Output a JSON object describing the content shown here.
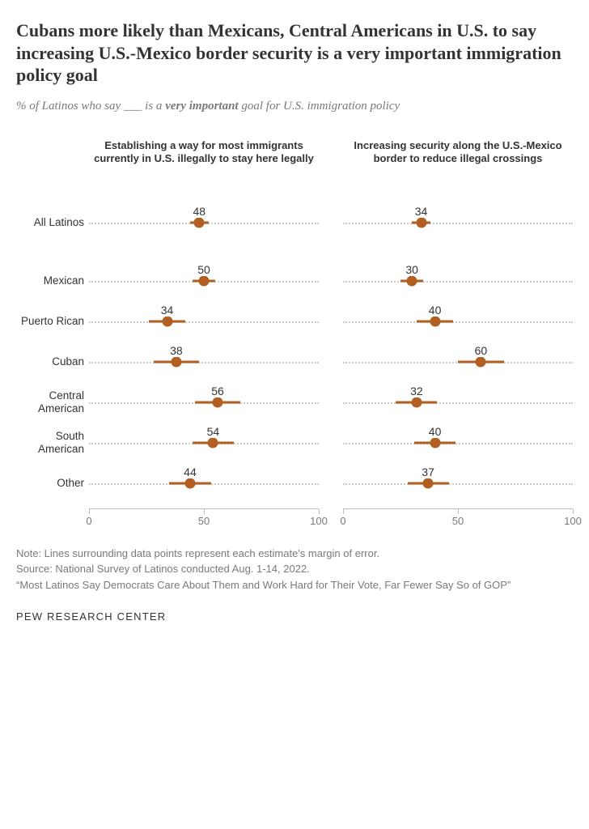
{
  "title": "Cubans more likely than Mexicans, Central Americans in U.S. to say increasing U.S.-Mexico border security is a very important immigration policy goal",
  "subtitle_pre": "% of Latinos who say ___ is a ",
  "subtitle_bold": "very important",
  "subtitle_post": " goal for U.S. immigration policy",
  "colors": {
    "dot": "#b45f22",
    "moe": "#b45f22",
    "dotted": "#cccccc",
    "axis": "#bdbdbd",
    "text_muted": "#7a7a7a"
  },
  "x_domain": [
    0,
    100
  ],
  "axis_ticks": [
    0,
    50,
    100
  ],
  "panels": [
    {
      "header": "Establishing a way for most immigrants currently in U.S. illegally to stay here legally"
    },
    {
      "header": "Increasing security along the U.S.-Mexico border to reduce illegal crossings"
    }
  ],
  "groups": [
    {
      "label": "All Latinos",
      "values": [
        48,
        34
      ],
      "moe": [
        4,
        4
      ],
      "spacer_after": true
    },
    {
      "label": "Mexican",
      "values": [
        50,
        30
      ],
      "moe": [
        5,
        5
      ]
    },
    {
      "label": "Puerto Rican",
      "values": [
        34,
        40
      ],
      "moe": [
        8,
        8
      ]
    },
    {
      "label": "Cuban",
      "values": [
        38,
        60
      ],
      "moe": [
        10,
        10
      ]
    },
    {
      "label": "Central American",
      "values": [
        56,
        32
      ],
      "moe": [
        10,
        9
      ]
    },
    {
      "label": "South American",
      "values": [
        54,
        40
      ],
      "moe": [
        9,
        9
      ]
    },
    {
      "label": "Other",
      "values": [
        44,
        37
      ],
      "moe": [
        9,
        9
      ]
    }
  ],
  "note": "Note: Lines surrounding data points represent each estimate's margin of error.",
  "source": "Source: National Survey of Latinos conducted Aug. 1-14, 2022.",
  "report": "“Most Latinos Say Democrats Care About Them and Work Hard for Their Vote, Far Fewer Say So of GOP”",
  "brand": "PEW RESEARCH CENTER"
}
